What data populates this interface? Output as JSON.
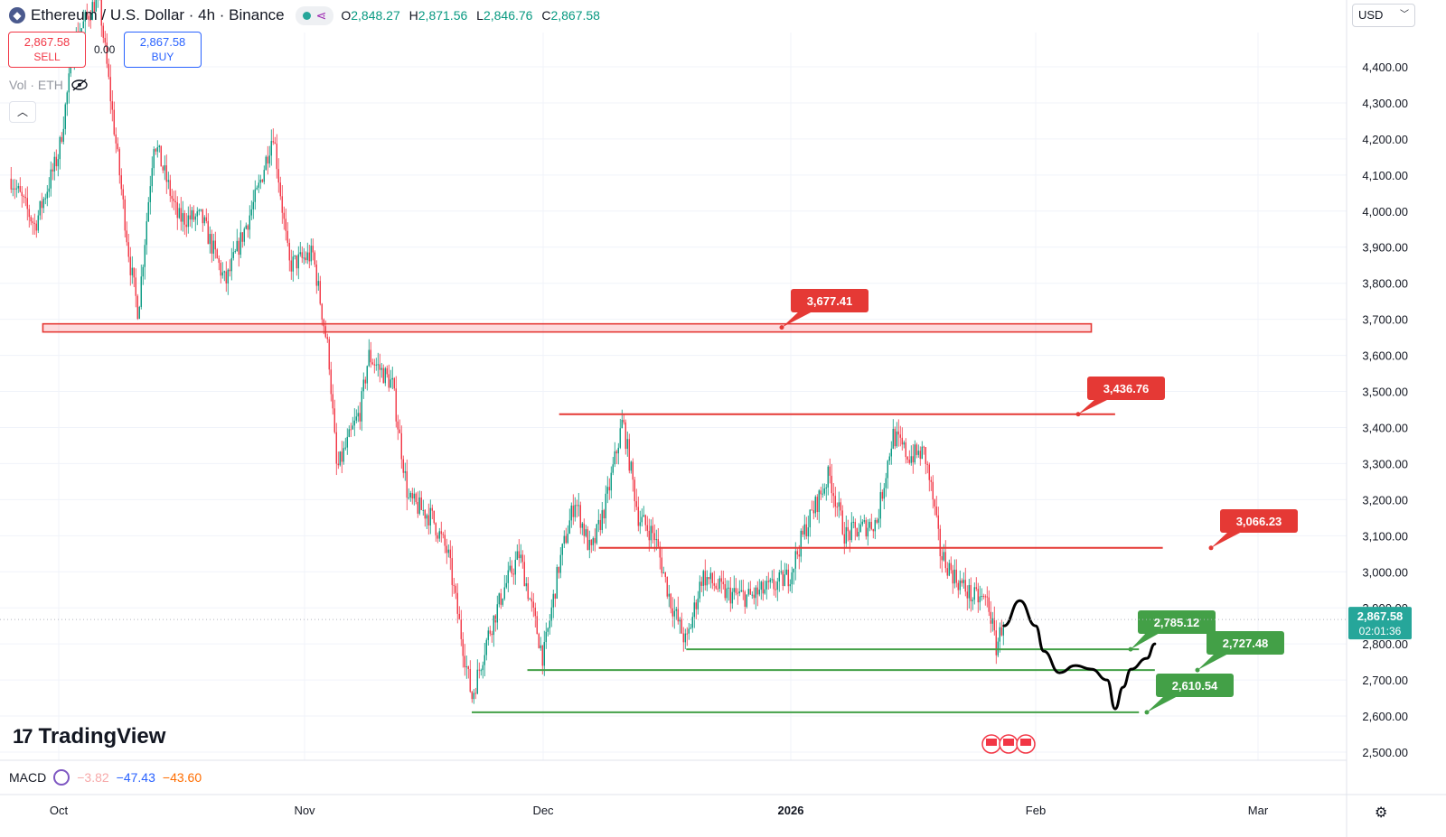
{
  "header": {
    "title": "Ethereum / U.S. Dollar · 4h · Binance",
    "ohlc": [
      {
        "label": "O",
        "value": "2,848.27"
      },
      {
        "label": "H",
        "value": "2,871.56"
      },
      {
        "label": "L",
        "value": "2,846.76"
      },
      {
        "label": "C",
        "value": "2,867.58"
      }
    ]
  },
  "trade": {
    "sell_price": "2,867.58",
    "sell_label": "SELL",
    "buy_price": "2,867.58",
    "buy_label": "BUY",
    "spread": "0.00"
  },
  "volume": {
    "label": "Vol · ETH"
  },
  "currency": {
    "selected": "USD"
  },
  "macd": {
    "label": "MACD",
    "v1": "−3.82",
    "v2": "−47.43",
    "v3": "−43.60"
  },
  "time_axis": [
    "Oct",
    "Nov",
    "Dec",
    "2026",
    "Feb",
    "Mar"
  ],
  "current_price": {
    "price": "2,867.58",
    "countdown": "02:01:36"
  },
  "logo": {
    "text": "TradingView"
  },
  "colors": {
    "up": "#089981",
    "down": "#f23645",
    "resistance": "#e53935",
    "support": "#43a047",
    "forecast": "#000000"
  },
  "chart_data": {
    "type": "candlestick",
    "symbol": "ETHUSD",
    "interval": "4h",
    "exchange": "Binance",
    "y_axis": {
      "ticks": [
        2500,
        2600,
        2700,
        2800,
        2900,
        3000,
        3100,
        3200,
        3300,
        3400,
        3500,
        3600,
        3700,
        3800,
        3900,
        4000,
        4100,
        4200,
        4300,
        4400
      ],
      "tick_labels": [
        "2,500.00",
        "2,600.00",
        "2,700.00",
        "2,800.00",
        "2,900.00",
        "3,000.00",
        "3,100.00",
        "3,200.00",
        "3,300.00",
        "3,400.00",
        "3,500.00",
        "3,600.00",
        "3,700.00",
        "3,800.00",
        "3,900.00",
        "4,000.00",
        "4,100.00",
        "4,200.00",
        "4,300.00",
        "4,400.00"
      ],
      "range": [
        2480,
        4480
      ],
      "position": "right"
    },
    "x_axis": {
      "labels": [
        "Oct",
        "Nov",
        "Dec",
        "2026",
        "Feb",
        "Mar"
      ]
    },
    "price_path": [
      [
        "2025-09-25",
        4090
      ],
      [
        "2025-09-28",
        3960
      ],
      [
        "2025-10-01",
        4160
      ],
      [
        "2025-10-03",
        4470
      ],
      [
        "2025-10-06",
        4600
      ],
      [
        "2025-10-10",
        3850
      ],
      [
        "2025-10-11",
        3720
      ],
      [
        "2025-10-13",
        4200
      ],
      [
        "2025-10-16",
        3980
      ],
      [
        "2025-10-19",
        3980
      ],
      [
        "2025-10-22",
        3800
      ],
      [
        "2025-10-26",
        4050
      ],
      [
        "2025-10-28",
        4220
      ],
      [
        "2025-10-30",
        3850
      ],
      [
        "2025-11-02",
        3880
      ],
      [
        "2025-11-04",
        3600
      ],
      [
        "2025-11-05",
        3280
      ],
      [
        "2025-11-08",
        3450
      ],
      [
        "2025-11-09",
        3600
      ],
      [
        "2025-11-12",
        3520
      ],
      [
        "2025-11-14",
        3200
      ],
      [
        "2025-11-17",
        3150
      ],
      [
        "2025-11-19",
        3050
      ],
      [
        "2025-11-21",
        2780
      ],
      [
        "2025-11-22",
        2650
      ],
      [
        "2025-11-24",
        2820
      ],
      [
        "2025-11-26",
        2950
      ],
      [
        "2025-11-28",
        3050
      ],
      [
        "2025-12-01",
        2760
      ],
      [
        "2025-12-03",
        3020
      ],
      [
        "2025-12-05",
        3200
      ],
      [
        "2025-12-07",
        3050
      ],
      [
        "2025-12-09",
        3200
      ],
      [
        "2025-12-11",
        3420
      ],
      [
        "2025-12-13",
        3150
      ],
      [
        "2025-12-15",
        3100
      ],
      [
        "2025-12-17",
        2920
      ],
      [
        "2025-12-19",
        2800
      ],
      [
        "2025-12-21",
        2990
      ],
      [
        "2025-12-24",
        2940
      ],
      [
        "2025-12-27",
        2930
      ],
      [
        "2025-12-30",
        2960
      ],
      [
        "2026-01-01",
        2990
      ],
      [
        "2026-01-03",
        3120
      ],
      [
        "2026-01-06",
        3270
      ],
      [
        "2026-01-08",
        3100
      ],
      [
        "2026-01-10",
        3120
      ],
      [
        "2026-01-12",
        3140
      ],
      [
        "2026-01-14",
        3380
      ],
      [
        "2026-01-16",
        3320
      ],
      [
        "2026-01-18",
        3330
      ],
      [
        "2026-01-19",
        3210
      ],
      [
        "2026-01-20",
        3050
      ],
      [
        "2026-01-22",
        2980
      ],
      [
        "2026-01-24",
        2930
      ],
      [
        "2026-01-26",
        2920
      ],
      [
        "2026-01-27",
        2790
      ],
      [
        "2026-01-28",
        2867.58
      ]
    ],
    "last_price": 2867.58,
    "levels": [
      {
        "type": "resistance-zone",
        "price": 3677.41,
        "label": "3,677.41",
        "from": "2025-09-29",
        "to": "2026-02-08"
      },
      {
        "type": "resistance",
        "price": 3436.76,
        "label": "3,436.76",
        "from": "2025-12-03",
        "to": "2026-02-11"
      },
      {
        "type": "resistance",
        "price": 3066.23,
        "label": "3,066.23",
        "from": "2025-12-08",
        "to": "2026-02-17"
      },
      {
        "type": "support",
        "price": 2785.12,
        "label": "2,785.12",
        "from": "2025-12-19",
        "to": "2026-02-14"
      },
      {
        "type": "support",
        "price": 2727.48,
        "label": "2,727.48",
        "from": "2025-11-29",
        "to": "2026-02-16"
      },
      {
        "type": "support",
        "price": 2610.54,
        "label": "2,610.54",
        "from": "2025-11-22",
        "to": "2026-02-14"
      }
    ],
    "forecast_path": [
      [
        "2026-01-28",
        2850
      ],
      [
        "2026-01-30",
        2920
      ],
      [
        "2026-02-01",
        2850
      ],
      [
        "2026-02-02",
        2780
      ],
      [
        "2026-02-04",
        2720
      ],
      [
        "2026-02-06",
        2740
      ],
      [
        "2026-02-08",
        2730
      ],
      [
        "2026-02-10",
        2700
      ],
      [
        "2026-02-11",
        2620
      ],
      [
        "2026-02-12",
        2680
      ],
      [
        "2026-02-13",
        2730
      ],
      [
        "2026-02-15",
        2760
      ],
      [
        "2026-02-16",
        2800
      ]
    ],
    "grid": true,
    "legend": "none"
  }
}
